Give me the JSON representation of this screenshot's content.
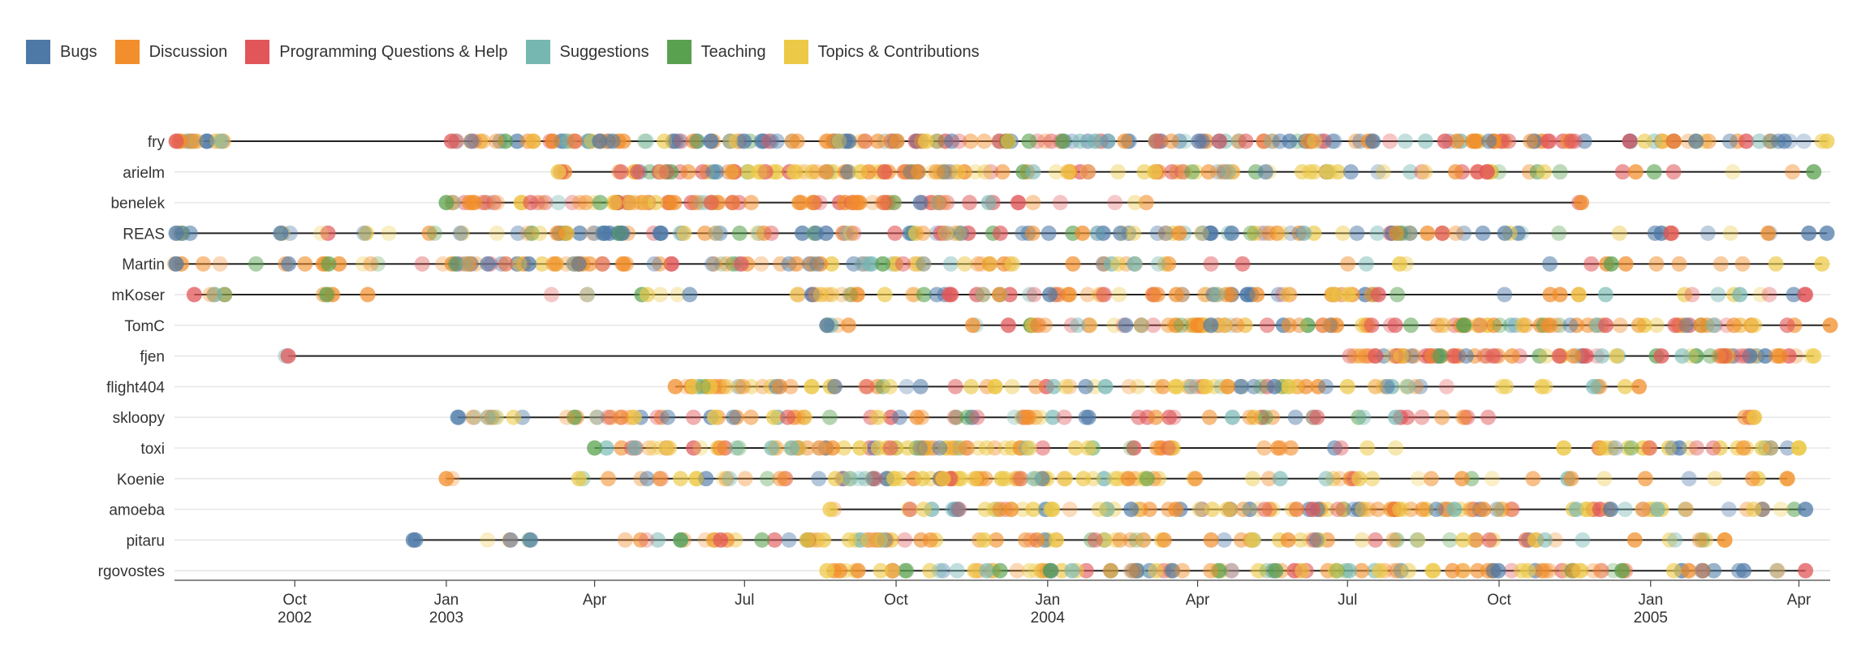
{
  "chart_data": {
    "type": "scatter",
    "subtype": "timeline-dot-strip",
    "title": "",
    "xlabel": "",
    "ylabel": "",
    "x_range": [
      "2002-07-20",
      "2005-04-20"
    ],
    "x_ticks": [
      {
        "date": "2002-10-01",
        "label": "Oct",
        "year": "2002"
      },
      {
        "date": "2003-01-01",
        "label": "Jan",
        "year": "2003"
      },
      {
        "date": "2003-04-01",
        "label": "Apr",
        "year": ""
      },
      {
        "date": "2003-07-01",
        "label": "Jul",
        "year": ""
      },
      {
        "date": "2003-10-01",
        "label": "Oct",
        "year": ""
      },
      {
        "date": "2004-01-01",
        "label": "Jan",
        "year": "2004"
      },
      {
        "date": "2004-04-01",
        "label": "Apr",
        "year": ""
      },
      {
        "date": "2004-07-01",
        "label": "Jul",
        "year": ""
      },
      {
        "date": "2004-10-01",
        "label": "Oct",
        "year": ""
      },
      {
        "date": "2005-01-01",
        "label": "Jan",
        "year": "2005"
      },
      {
        "date": "2005-04-01",
        "label": "Apr",
        "year": ""
      }
    ],
    "legend_position": "top-left",
    "categories": [
      {
        "name": "Bugs",
        "color": "#4e79a7"
      },
      {
        "name": "Discussion",
        "color": "#f28e2b"
      },
      {
        "name": "Programming Questions & Help",
        "color": "#e15759"
      },
      {
        "name": "Suggestions",
        "color": "#76b7b2"
      },
      {
        "name": "Teaching",
        "color": "#59a14f"
      },
      {
        "name": "Topics & Contributions",
        "color": "#edc948"
      }
    ],
    "rows": [
      {
        "name": "fry",
        "first": "2002-07-21",
        "last": "2005-04-18",
        "weights": [
          0.28,
          0.27,
          0.2,
          0.1,
          0.05,
          0.1
        ],
        "clusters": [
          [
            "2002-07-20",
            "2002-08-20",
            18
          ],
          [
            "2002-12-25",
            "2003-04-20",
            40
          ],
          [
            "2003-05-01",
            "2003-08-20",
            30
          ],
          [
            "2003-08-20",
            "2004-01-01",
            45
          ],
          [
            "2004-01-01",
            "2004-07-01",
            50
          ],
          [
            "2004-07-01",
            "2004-11-01",
            30
          ],
          [
            "2004-11-01",
            "2005-04-18",
            30
          ]
        ]
      },
      {
        "name": "arielm",
        "first": "2003-03-10",
        "last": "2005-04-10",
        "weights": [
          0.05,
          0.2,
          0.18,
          0.07,
          0.1,
          0.4
        ],
        "clusters": [
          [
            "2003-03-10",
            "2003-03-15",
            2
          ],
          [
            "2003-04-15",
            "2003-08-01",
            40
          ],
          [
            "2003-08-01",
            "2003-11-20",
            40
          ],
          [
            "2003-11-20",
            "2004-03-20",
            20
          ],
          [
            "2004-03-20",
            "2004-07-01",
            25
          ],
          [
            "2004-07-01",
            "2004-10-01",
            15
          ],
          [
            "2004-10-01",
            "2005-04-10",
            10
          ]
        ]
      },
      {
        "name": "benelek",
        "first": "2003-01-01",
        "last": "2004-11-20",
        "weights": [
          0.03,
          0.45,
          0.3,
          0.07,
          0.05,
          0.1
        ],
        "clusters": [
          [
            "2003-01-01",
            "2003-02-01",
            12
          ],
          [
            "2003-02-15",
            "2003-06-20",
            45
          ],
          [
            "2003-06-20",
            "2003-11-01",
            35
          ],
          [
            "2003-11-01",
            "2004-03-01",
            10
          ],
          [
            "2004-11-18",
            "2004-11-20",
            1
          ]
        ]
      },
      {
        "name": "REAS",
        "first": "2002-07-21",
        "last": "2005-04-18",
        "weights": [
          0.3,
          0.25,
          0.1,
          0.1,
          0.1,
          0.15
        ],
        "clusters": [
          [
            "2002-07-20",
            "2002-08-01",
            4
          ],
          [
            "2002-09-20",
            "2003-01-01",
            10
          ],
          [
            "2003-01-01",
            "2003-08-01",
            40
          ],
          [
            "2003-08-01",
            "2004-01-01",
            30
          ],
          [
            "2004-01-01",
            "2004-07-01",
            35
          ],
          [
            "2004-07-01",
            "2004-10-15",
            20
          ],
          [
            "2004-10-15",
            "2005-04-18",
            12
          ]
        ]
      },
      {
        "name": "Martin",
        "first": "2002-07-21",
        "last": "2005-04-15",
        "weights": [
          0.15,
          0.45,
          0.15,
          0.08,
          0.05,
          0.12
        ],
        "clusters": [
          [
            "2002-07-20",
            "2002-09-10",
            5
          ],
          [
            "2002-09-20",
            "2003-01-01",
            12
          ],
          [
            "2003-01-01",
            "2003-05-20",
            40
          ],
          [
            "2003-05-20",
            "2003-08-01",
            12
          ],
          [
            "2003-08-01",
            "2003-12-15",
            30
          ],
          [
            "2003-12-15",
            "2004-04-20",
            12
          ],
          [
            "2004-04-20",
            "2005-04-15",
            15
          ]
        ]
      },
      {
        "name": "mKoser",
        "first": "2002-08-01",
        "last": "2005-04-05",
        "weights": [
          0.1,
          0.35,
          0.2,
          0.08,
          0.07,
          0.2
        ],
        "clusters": [
          [
            "2002-08-01",
            "2002-08-25",
            5
          ],
          [
            "2002-10-10",
            "2002-11-20",
            5
          ],
          [
            "2003-03-01",
            "2003-06-01",
            8
          ],
          [
            "2003-08-01",
            "2003-12-01",
            25
          ],
          [
            "2003-12-01",
            "2004-06-01",
            40
          ],
          [
            "2004-06-01",
            "2004-12-01",
            18
          ],
          [
            "2004-12-01",
            "2005-04-05",
            10
          ]
        ]
      },
      {
        "name": "TomC",
        "first": "2003-08-20",
        "last": "2005-04-20",
        "weights": [
          0.08,
          0.35,
          0.2,
          0.08,
          0.09,
          0.2
        ],
        "clusters": [
          [
            "2003-08-20",
            "2003-09-10",
            4
          ],
          [
            "2003-11-01",
            "2004-02-15",
            15
          ],
          [
            "2004-02-15",
            "2004-07-01",
            40
          ],
          [
            "2004-07-01",
            "2004-11-01",
            30
          ],
          [
            "2004-11-01",
            "2005-04-20",
            35
          ]
        ]
      },
      {
        "name": "fjen",
        "first": "2002-09-27",
        "last": "2005-04-10",
        "weights": [
          0.05,
          0.35,
          0.3,
          0.1,
          0.05,
          0.15
        ],
        "clusters": [
          [
            "2002-09-25",
            "2002-09-30",
            1
          ],
          [
            "2004-07-01",
            "2004-11-15",
            45
          ],
          [
            "2004-11-15",
            "2005-02-01",
            15
          ],
          [
            "2005-02-01",
            "2005-04-10",
            25
          ]
        ]
      },
      {
        "name": "flight404",
        "first": "2003-05-20",
        "last": "2004-12-25",
        "weights": [
          0.12,
          0.25,
          0.08,
          0.08,
          0.07,
          0.4
        ],
        "clusters": [
          [
            "2003-05-20",
            "2003-08-01",
            25
          ],
          [
            "2003-08-01",
            "2004-02-01",
            25
          ],
          [
            "2004-02-01",
            "2004-06-20",
            35
          ],
          [
            "2004-06-20",
            "2004-11-01",
            15
          ],
          [
            "2004-11-01",
            "2004-12-25",
            5
          ]
        ]
      },
      {
        "name": "skloopy",
        "first": "2003-01-08",
        "last": "2005-03-05",
        "weights": [
          0.15,
          0.25,
          0.25,
          0.1,
          0.05,
          0.2
        ],
        "clusters": [
          [
            "2003-01-08",
            "2003-02-20",
            10
          ],
          [
            "2003-03-10",
            "2003-05-15",
            15
          ],
          [
            "2003-05-15",
            "2003-08-20",
            15
          ],
          [
            "2003-08-20",
            "2004-01-01",
            20
          ],
          [
            "2004-01-01",
            "2004-06-20",
            20
          ],
          [
            "2004-06-20",
            "2004-10-01",
            12
          ],
          [
            "2005-02-20",
            "2005-03-05",
            3
          ]
        ]
      },
      {
        "name": "toxi",
        "first": "2003-04-01",
        "last": "2005-04-01",
        "weights": [
          0.12,
          0.25,
          0.18,
          0.1,
          0.05,
          0.3
        ],
        "clusters": [
          [
            "2003-04-01",
            "2003-06-01",
            12
          ],
          [
            "2003-06-01",
            "2003-09-20",
            25
          ],
          [
            "2003-09-20",
            "2004-01-01",
            35
          ],
          [
            "2004-01-01",
            "2004-03-20",
            12
          ],
          [
            "2004-05-01",
            "2004-08-01",
            8
          ],
          [
            "2004-11-01",
            "2005-04-01",
            30
          ]
        ]
      },
      {
        "name": "Koenie",
        "first": "2003-01-01",
        "last": "2005-03-25",
        "weights": [
          0.05,
          0.3,
          0.05,
          0.1,
          0.05,
          0.45
        ],
        "clusters": [
          [
            "2003-01-01",
            "2003-01-05",
            1
          ],
          [
            "2003-03-20",
            "2003-06-01",
            8
          ],
          [
            "2003-06-01",
            "2003-09-01",
            15
          ],
          [
            "2003-09-01",
            "2004-01-15",
            45
          ],
          [
            "2004-01-15",
            "2004-04-01",
            15
          ],
          [
            "2004-04-01",
            "2004-10-01",
            15
          ],
          [
            "2004-10-01",
            "2005-03-25",
            10
          ]
        ]
      },
      {
        "name": "amoeba",
        "first": "2003-08-22",
        "last": "2005-04-05",
        "weights": [
          0.08,
          0.3,
          0.1,
          0.08,
          0.05,
          0.39
        ],
        "clusters": [
          [
            "2003-08-22",
            "2003-08-25",
            1
          ],
          [
            "2003-10-01",
            "2004-01-01",
            20
          ],
          [
            "2004-01-01",
            "2004-04-01",
            15
          ],
          [
            "2004-04-01",
            "2004-08-01",
            40
          ],
          [
            "2004-08-01",
            "2004-12-01",
            30
          ],
          [
            "2004-12-01",
            "2005-04-05",
            20
          ]
        ]
      },
      {
        "name": "pitaru",
        "first": "2002-12-12",
        "last": "2005-02-15",
        "weights": [
          0.08,
          0.3,
          0.1,
          0.12,
          0.1,
          0.3
        ],
        "clusters": [
          [
            "2002-12-12",
            "2002-12-15",
            1
          ],
          [
            "2003-01-10",
            "2003-02-15",
            3
          ],
          [
            "2003-02-20",
            "2003-03-01",
            2
          ],
          [
            "2003-04-15",
            "2003-07-20",
            15
          ],
          [
            "2003-07-20",
            "2004-01-10",
            35
          ],
          [
            "2004-01-10",
            "2004-05-01",
            15
          ],
          [
            "2004-05-01",
            "2004-10-20",
            30
          ],
          [
            "2004-10-20",
            "2005-02-15",
            12
          ]
        ]
      },
      {
        "name": "rgovostes",
        "first": "2003-08-20",
        "last": "2005-04-05",
        "weights": [
          0.1,
          0.3,
          0.12,
          0.08,
          0.1,
          0.3
        ],
        "clusters": [
          [
            "2003-08-20",
            "2003-09-10",
            6
          ],
          [
            "2003-09-20",
            "2004-01-01",
            25
          ],
          [
            "2004-01-01",
            "2004-03-20",
            20
          ],
          [
            "2004-03-20",
            "2004-07-20",
            25
          ],
          [
            "2004-07-20",
            "2004-11-15",
            30
          ],
          [
            "2004-11-15",
            "2005-04-05",
            22
          ]
        ]
      }
    ]
  }
}
